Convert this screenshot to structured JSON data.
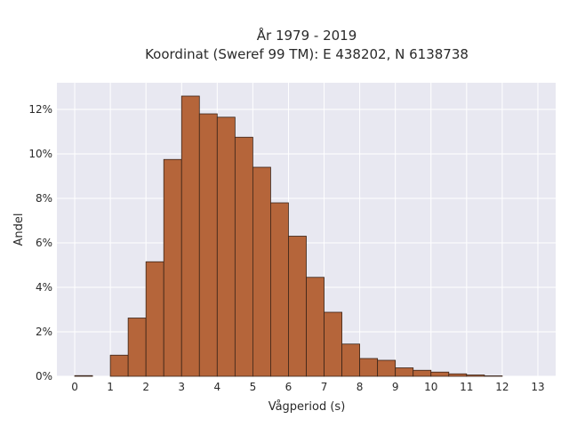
{
  "chart_data": {
    "type": "bar",
    "title_line1": "År 1979 - 2019",
    "title_line2": "Koordinat (Sweref 99 TM): E 438202, N 6138738",
    "xlabel": "Vågperiod (s)",
    "ylabel": "Andel",
    "xlim": [
      -0.5,
      13.5
    ],
    "ylim": [
      0,
      13.2
    ],
    "x_ticks": [
      0,
      1,
      2,
      3,
      4,
      5,
      6,
      7,
      8,
      9,
      10,
      11,
      12,
      13
    ],
    "y_ticks": [
      0,
      2,
      4,
      6,
      8,
      10,
      12
    ],
    "y_tick_suffix": "%",
    "bin_width": 0.5,
    "bin_edges_start": [
      0,
      0.5,
      1,
      1.5,
      2,
      2.5,
      3,
      3.5,
      4,
      4.5,
      5,
      5.5,
      6,
      6.5,
      7,
      7.5,
      8,
      8.5,
      9,
      9.5,
      10,
      10.5,
      11,
      11.5,
      12,
      12.5,
      13
    ],
    "values": [
      0.03,
      0,
      0.95,
      2.62,
      5.15,
      9.75,
      12.6,
      11.8,
      11.65,
      10.75,
      9.4,
      7.8,
      6.3,
      4.45,
      2.88,
      1.45,
      0.8,
      0.72,
      0.38,
      0.27,
      0.19,
      0.11,
      0.06,
      0.02,
      0,
      0,
      0
    ],
    "grid": true,
    "colors": {
      "bar_fill": "#b5653a",
      "bar_stroke": "#3a2418",
      "plot_bg": "#e8e8f1",
      "grid": "#ffffff",
      "text": "#2a2a2a"
    }
  }
}
